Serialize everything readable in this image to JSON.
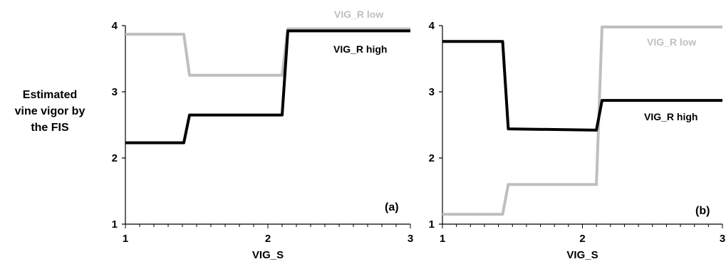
{
  "ylabel_lines": [
    "Estimated",
    "vine vigor by",
    "the FIS"
  ],
  "chart_data": [
    {
      "type": "line",
      "panel_label": "(a)",
      "xlabel": "VIG_S",
      "xlim": [
        1,
        3
      ],
      "ylim": [
        1,
        4
      ],
      "x_ticks": [
        "1",
        "2",
        "3"
      ],
      "y_ticks": [
        "1",
        "2",
        "3",
        "4"
      ],
      "series": [
        {
          "name": "VIG_R low",
          "color": "#bfbfbf",
          "x": [
            1.0,
            1.41,
            1.45,
            2.1,
            2.14,
            3.0
          ],
          "y": [
            3.87,
            3.87,
            3.25,
            3.25,
            3.95,
            3.95
          ]
        },
        {
          "name": "VIG_R high",
          "color": "#000000",
          "x": [
            1.0,
            1.41,
            1.45,
            2.1,
            2.14,
            3.0
          ],
          "y": [
            2.23,
            2.23,
            2.65,
            2.65,
            3.92,
            3.92
          ]
        }
      ]
    },
    {
      "type": "line",
      "panel_label": "(b)",
      "xlabel": "VIG_S",
      "xlim": [
        1,
        3
      ],
      "ylim": [
        1,
        4
      ],
      "x_ticks": [
        "1",
        "2",
        "3"
      ],
      "y_ticks": [
        "1",
        "2",
        "3",
        "4"
      ],
      "series": [
        {
          "name": "VIG_R low",
          "color": "#bfbfbf",
          "x": [
            1.0,
            1.43,
            1.47,
            2.1,
            2.14,
            3.0
          ],
          "y": [
            1.15,
            1.15,
            1.6,
            1.6,
            3.98,
            3.98
          ]
        },
        {
          "name": "VIG_R high",
          "color": "#000000",
          "x": [
            1.0,
            1.43,
            1.47,
            2.1,
            2.14,
            3.0
          ],
          "y": [
            3.76,
            3.76,
            2.44,
            2.42,
            2.87,
            2.87
          ]
        }
      ]
    }
  ]
}
